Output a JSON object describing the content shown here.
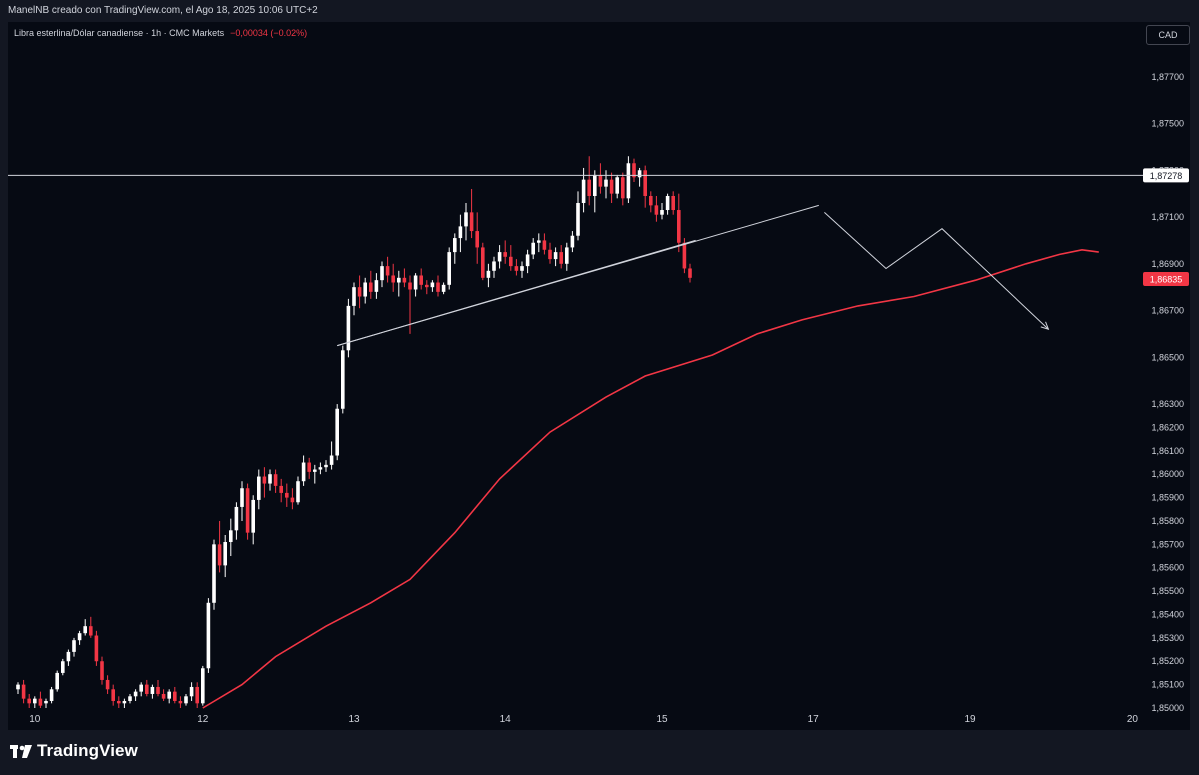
{
  "header": {
    "credit": "ManelNB creado con TradingView.com, el Ago 18, 2025 10:06 UTC+2"
  },
  "legend": {
    "symbol": "Libra esterlina/Dólar canadiense · 1h · CMC Markets",
    "change": "−0,00034 (−0.02%)"
  },
  "currency": "CAD",
  "brand": "TradingView",
  "colors": {
    "up": "#ffffff",
    "down": "#f23645",
    "ma": "#f23645",
    "trendline": "#d1d4dc",
    "background": "#060a13"
  },
  "chart_data": {
    "type": "candlestick",
    "ylim": [
      1.85,
      1.879
    ],
    "y_ticks": [
      "1,87700",
      "1,87500",
      "1,87300",
      "1,87100",
      "1,86900",
      "1,86700",
      "1,86500",
      "1,86300",
      "1,86200",
      "1,86100",
      "1,86000",
      "1,85900",
      "1,85800",
      "1,85700",
      "1,85600",
      "1,85500",
      "1,85400",
      "1,85300",
      "1,85200",
      "1,85100",
      "1,85000"
    ],
    "x_ticks": [
      "10",
      "12",
      "13",
      "14",
      "15",
      "17",
      "19",
      "20"
    ],
    "price_labels": [
      {
        "value": 1.87278,
        "text": "1,87278",
        "style": "level"
      },
      {
        "value": 1.86835,
        "text": "1,86835",
        "style": "last"
      }
    ],
    "horizontal_level": 1.87278,
    "candles": [
      [
        1.8508,
        1.8511,
        1.8506,
        1.851
      ],
      [
        1.851,
        1.8512,
        1.8502,
        1.8504
      ],
      [
        1.8504,
        1.8506,
        1.85,
        1.8502
      ],
      [
        1.8502,
        1.8505,
        1.85,
        1.8504
      ],
      [
        1.8504,
        1.8507,
        1.85,
        1.8501
      ],
      [
        1.8502,
        1.8504,
        1.85,
        1.8503
      ],
      [
        1.8503,
        1.8509,
        1.8502,
        1.8508
      ],
      [
        1.8508,
        1.8516,
        1.8507,
        1.8515
      ],
      [
        1.8515,
        1.8521,
        1.8514,
        1.852
      ],
      [
        1.852,
        1.8525,
        1.8518,
        1.8524
      ],
      [
        1.8524,
        1.853,
        1.8522,
        1.8529
      ],
      [
        1.8529,
        1.8533,
        1.8527,
        1.8532
      ],
      [
        1.8532,
        1.8538,
        1.8531,
        1.8535
      ],
      [
        1.8535,
        1.8539,
        1.853,
        1.8531
      ],
      [
        1.8531,
        1.8533,
        1.8518,
        1.852
      ],
      [
        1.852,
        1.8522,
        1.851,
        1.8512
      ],
      [
        1.8512,
        1.8514,
        1.8506,
        1.8508
      ],
      [
        1.8508,
        1.851,
        1.8501,
        1.8503
      ],
      [
        1.8503,
        1.8505,
        1.85,
        1.8502
      ],
      [
        1.8502,
        1.8504,
        1.85,
        1.8503
      ],
      [
        1.8503,
        1.8506,
        1.8502,
        1.8505
      ],
      [
        1.8505,
        1.8508,
        1.8503,
        1.8507
      ],
      [
        1.8507,
        1.8511,
        1.8505,
        1.851
      ],
      [
        1.851,
        1.8512,
        1.8505,
        1.8506
      ],
      [
        1.8506,
        1.851,
        1.8504,
        1.8509
      ],
      [
        1.8509,
        1.8512,
        1.8505,
        1.8506
      ],
      [
        1.8506,
        1.8508,
        1.8503,
        1.8504
      ],
      [
        1.8504,
        1.8508,
        1.8502,
        1.8507
      ],
      [
        1.8507,
        1.8509,
        1.8502,
        1.8503
      ],
      [
        1.8503,
        1.8505,
        1.85,
        1.8502
      ],
      [
        1.8502,
        1.8506,
        1.8501,
        1.8505
      ],
      [
        1.8505,
        1.8511,
        1.8503,
        1.8509
      ],
      [
        1.8509,
        1.8511,
        1.85,
        1.8502
      ],
      [
        1.8502,
        1.8518,
        1.8501,
        1.8517
      ],
      [
        1.8517,
        1.8547,
        1.8515,
        1.8545
      ],
      [
        1.8545,
        1.8572,
        1.8542,
        1.857
      ],
      [
        1.857,
        1.858,
        1.8558,
        1.8561
      ],
      [
        1.8561,
        1.8574,
        1.8556,
        1.8571
      ],
      [
        1.8571,
        1.8581,
        1.8565,
        1.8576
      ],
      [
        1.8576,
        1.8588,
        1.8572,
        1.8586
      ],
      [
        1.8586,
        1.8597,
        1.858,
        1.8594
      ],
      [
        1.8594,
        1.8596,
        1.8572,
        1.8575
      ],
      [
        1.8575,
        1.8591,
        1.857,
        1.8589
      ],
      [
        1.8589,
        1.8602,
        1.8585,
        1.8599
      ],
      [
        1.8599,
        1.8603,
        1.859,
        1.8596
      ],
      [
        1.8596,
        1.8602,
        1.8593,
        1.86
      ],
      [
        1.86,
        1.8602,
        1.8592,
        1.8595
      ],
      [
        1.8595,
        1.8598,
        1.8588,
        1.8592
      ],
      [
        1.8592,
        1.8596,
        1.8586,
        1.859
      ],
      [
        1.859,
        1.8594,
        1.8585,
        1.8588
      ],
      [
        1.8588,
        1.8599,
        1.8587,
        1.8597
      ],
      [
        1.8597,
        1.8608,
        1.8595,
        1.8605
      ],
      [
        1.8605,
        1.8607,
        1.8598,
        1.8601
      ],
      [
        1.8601,
        1.8604,
        1.8596,
        1.8602
      ],
      [
        1.8602,
        1.8605,
        1.86,
        1.8603
      ],
      [
        1.8603,
        1.8606,
        1.8601,
        1.8604
      ],
      [
        1.8604,
        1.8614,
        1.8602,
        1.8608
      ],
      [
        1.8608,
        1.863,
        1.8606,
        1.8628
      ],
      [
        1.8628,
        1.8655,
        1.8626,
        1.8653
      ],
      [
        1.8653,
        1.8675,
        1.865,
        1.8672
      ],
      [
        1.8672,
        1.8682,
        1.8668,
        1.868
      ],
      [
        1.868,
        1.8685,
        1.8671,
        1.8676
      ],
      [
        1.8676,
        1.8684,
        1.8673,
        1.8682
      ],
      [
        1.8682,
        1.8687,
        1.8675,
        1.8678
      ],
      [
        1.8678,
        1.8686,
        1.8675,
        1.8683
      ],
      [
        1.8683,
        1.8691,
        1.868,
        1.8689
      ],
      [
        1.8689,
        1.8693,
        1.8682,
        1.8685
      ],
      [
        1.8685,
        1.869,
        1.8678,
        1.8682
      ],
      [
        1.8682,
        1.8687,
        1.8676,
        1.8684
      ],
      [
        1.8684,
        1.8688,
        1.868,
        1.8682
      ],
      [
        1.8682,
        1.8685,
        1.866,
        1.8679
      ],
      [
        1.8679,
        1.8686,
        1.8676,
        1.8685
      ],
      [
        1.8685,
        1.8688,
        1.8679,
        1.8681
      ],
      [
        1.8681,
        1.8683,
        1.8677,
        1.868
      ],
      [
        1.868,
        1.8683,
        1.8678,
        1.8682
      ],
      [
        1.8682,
        1.8685,
        1.8676,
        1.8678
      ],
      [
        1.8678,
        1.8682,
        1.8677,
        1.8681
      ],
      [
        1.8681,
        1.8697,
        1.8679,
        1.8695
      ],
      [
        1.8695,
        1.8703,
        1.869,
        1.8701
      ],
      [
        1.8701,
        1.8711,
        1.8695,
        1.8706
      ],
      [
        1.8706,
        1.8716,
        1.87,
        1.8712
      ],
      [
        1.8712,
        1.8722,
        1.8701,
        1.8704
      ],
      [
        1.8704,
        1.8712,
        1.869,
        1.8697
      ],
      [
        1.8697,
        1.8699,
        1.8683,
        1.8684
      ],
      [
        1.8684,
        1.869,
        1.868,
        1.8687
      ],
      [
        1.8687,
        1.8693,
        1.8684,
        1.8691
      ],
      [
        1.8691,
        1.8698,
        1.8688,
        1.8695
      ],
      [
        1.8695,
        1.87,
        1.869,
        1.8693
      ],
      [
        1.8693,
        1.8698,
        1.8687,
        1.8689
      ],
      [
        1.8689,
        1.8692,
        1.8685,
        1.8687
      ],
      [
        1.8687,
        1.8691,
        1.8684,
        1.8689
      ],
      [
        1.8689,
        1.8696,
        1.8686,
        1.8694
      ],
      [
        1.8694,
        1.8701,
        1.8692,
        1.8699
      ],
      [
        1.8699,
        1.8703,
        1.8695,
        1.87
      ],
      [
        1.87,
        1.8703,
        1.8694,
        1.8696
      ],
      [
        1.8696,
        1.8699,
        1.869,
        1.8692
      ],
      [
        1.8692,
        1.8697,
        1.8689,
        1.8695
      ],
      [
        1.8695,
        1.8698,
        1.8688,
        1.869
      ],
      [
        1.869,
        1.8699,
        1.8687,
        1.8697
      ],
      [
        1.8697,
        1.8704,
        1.8695,
        1.8702
      ],
      [
        1.8702,
        1.8721,
        1.87,
        1.8716
      ],
      [
        1.8716,
        1.8731,
        1.8712,
        1.8726
      ],
      [
        1.8726,
        1.8736,
        1.8715,
        1.8719
      ],
      [
        1.8719,
        1.873,
        1.8712,
        1.8728
      ],
      [
        1.8728,
        1.8733,
        1.872,
        1.8723
      ],
      [
        1.8723,
        1.873,
        1.8718,
        1.8726
      ],
      [
        1.8726,
        1.8729,
        1.8716,
        1.872
      ],
      [
        1.872,
        1.8728,
        1.8718,
        1.8727
      ],
      [
        1.8727,
        1.8729,
        1.8715,
        1.8718
      ],
      [
        1.8718,
        1.8736,
        1.8716,
        1.8733
      ],
      [
        1.8733,
        1.8735,
        1.8725,
        1.8727
      ],
      [
        1.8727,
        1.8731,
        1.8723,
        1.873
      ],
      [
        1.873,
        1.8732,
        1.8714,
        1.8719
      ],
      [
        1.8719,
        1.8721,
        1.8712,
        1.8715
      ],
      [
        1.8715,
        1.8719,
        1.8708,
        1.8711
      ],
      [
        1.8711,
        1.8716,
        1.8709,
        1.8713
      ],
      [
        1.8713,
        1.872,
        1.8711,
        1.8719
      ],
      [
        1.8719,
        1.8721,
        1.8711,
        1.8713
      ],
      [
        1.8713,
        1.872,
        1.8695,
        1.8699
      ],
      [
        1.8699,
        1.8701,
        1.8686,
        1.8688
      ],
      [
        1.8688,
        1.869,
        1.8682,
        1.8684
      ]
    ],
    "moving_average": [
      [
        33,
        1.85
      ],
      [
        40,
        1.851
      ],
      [
        46,
        1.8522
      ],
      [
        55,
        1.8535
      ],
      [
        63,
        1.8545
      ],
      [
        70,
        1.8555
      ],
      [
        78,
        1.8575
      ],
      [
        86,
        1.8598
      ],
      [
        95,
        1.8618
      ],
      [
        105,
        1.8633
      ],
      [
        112,
        1.8642
      ],
      [
        124,
        1.8651
      ],
      [
        132,
        1.866
      ],
      [
        140,
        1.8666
      ],
      [
        150,
        1.8672
      ],
      [
        160,
        1.8676
      ],
      [
        171,
        1.8683
      ],
      [
        180,
        1.869
      ],
      [
        186,
        1.8694
      ],
      [
        190,
        1.8696
      ],
      [
        193,
        1.8695
      ]
    ],
    "trendlines": [
      {
        "from": [
          57,
          1.8655
        ],
        "to": [
          121,
          1.87
        ]
      },
      {
        "from": [
          57,
          1.8655
        ],
        "to": [
          143,
          1.8715
        ]
      }
    ],
    "projection": [
      [
        144,
        1.8712
      ],
      [
        155,
        1.8688
      ],
      [
        165,
        1.8705
      ],
      [
        184,
        1.8662
      ]
    ]
  }
}
